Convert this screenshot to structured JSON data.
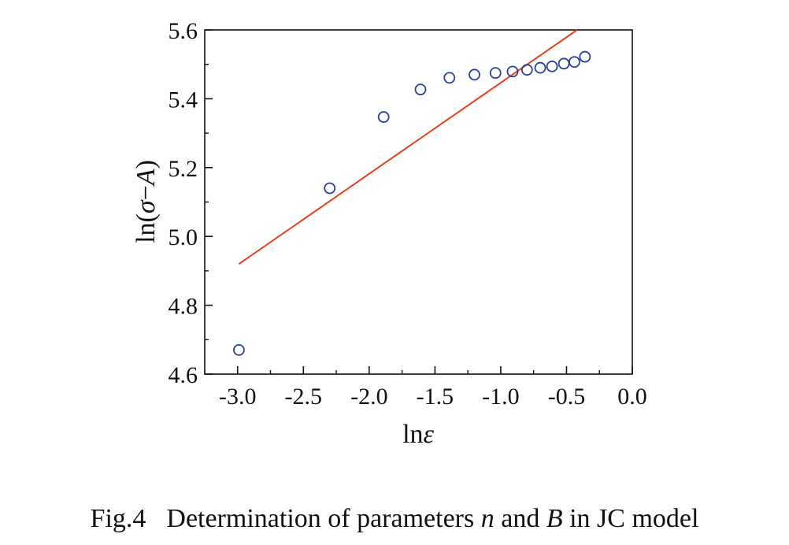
{
  "chart_data": {
    "type": "scatter",
    "xlabel": {
      "prefix": "ln",
      "symbol": "ε"
    },
    "ylabel": {
      "prefix": "ln(",
      "symbol1": "σ",
      "minus": "−",
      "symbol2": "A",
      "suffix": ")"
    },
    "xlim": [
      -3.25,
      0.0
    ],
    "ylim": [
      4.6,
      5.6
    ],
    "x_ticks": [
      -3.0,
      -2.5,
      -2.0,
      -1.5,
      -1.0,
      -0.5,
      0.0
    ],
    "x_tick_labels": [
      "-3.0",
      "-2.5",
      "-2.0",
      "-1.5",
      "-1.0",
      "-0.5",
      "0.0"
    ],
    "y_ticks": [
      4.6,
      4.8,
      5.0,
      5.2,
      5.4,
      5.6
    ],
    "y_tick_labels": [
      "4.6",
      "4.8",
      "5.0",
      "5.2",
      "5.4",
      "5.6"
    ],
    "grid": false,
    "series": [
      {
        "kind": "points",
        "marker": "open-circle",
        "color": "#2a3f9a",
        "x": [
          -2.99,
          -2.3,
          -1.89,
          -1.61,
          -1.39,
          -1.2,
          -1.04,
          -0.91,
          -0.8,
          -0.7,
          -0.61,
          -0.52,
          -0.44,
          -0.36
        ],
        "y": [
          4.67,
          5.14,
          5.347,
          5.427,
          5.461,
          5.47,
          5.475,
          5.479,
          5.484,
          5.49,
          5.494,
          5.502,
          5.507,
          5.522
        ]
      },
      {
        "kind": "fit-line",
        "color": "#e8401c",
        "x": [
          -2.99,
          -0.42
        ],
        "y": [
          4.92,
          5.6
        ]
      }
    ]
  },
  "caption": {
    "fig_label": "Fig.4",
    "text_1": "Determination of parameters ",
    "var_n": "n",
    "text_2": " and ",
    "var_b": "B",
    "text_3": " in JC model"
  }
}
